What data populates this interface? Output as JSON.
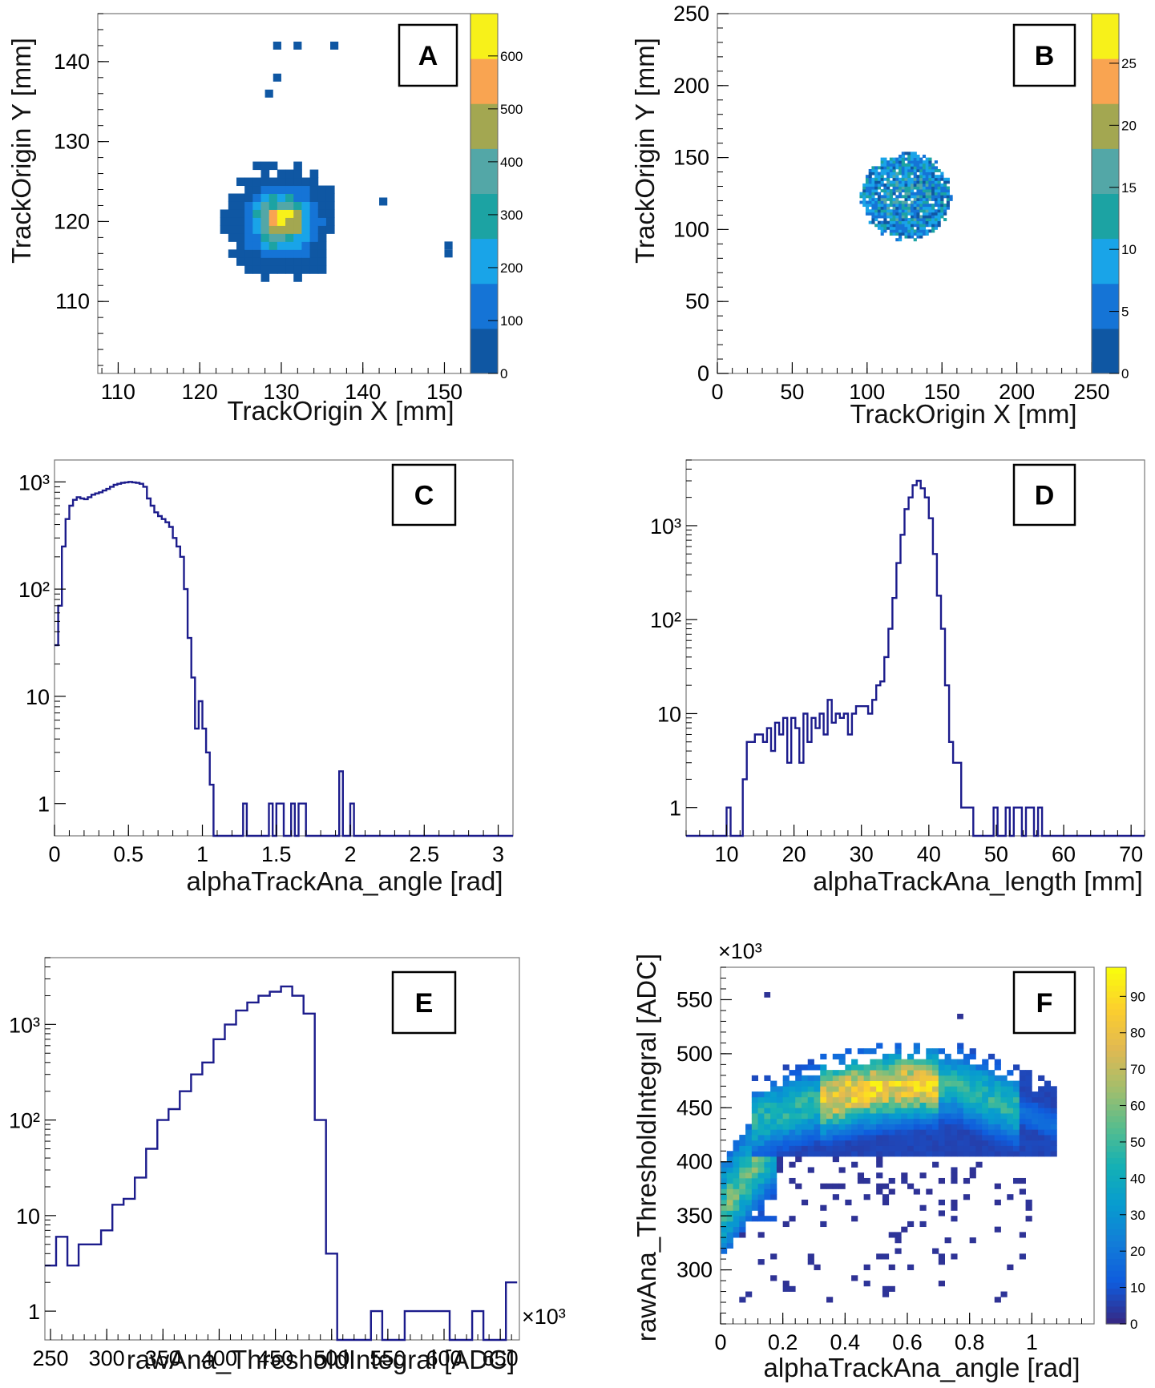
{
  "chart_data": [
    {
      "id": "A",
      "type": "heatmap",
      "panel_label": "A",
      "xlabel": "TrackOrigin  X [mm]",
      "ylabel": "TrackOrigin  Y [mm]",
      "xlim": [
        107.5,
        153
      ],
      "ylim": [
        101,
        146
      ],
      "xticks": [
        "110",
        "120",
        "130",
        "140",
        "150"
      ],
      "yticks": [
        "110",
        "120",
        "130",
        "140"
      ],
      "colorbar": {
        "ticks": [
          "0",
          "100",
          "200",
          "300",
          "400",
          "500",
          "600"
        ],
        "max": 680
      },
      "bin_size": 1,
      "clusters": [
        {
          "cx": 129.5,
          "cy": 119.5,
          "radius": 7,
          "peak": 640
        }
      ],
      "points": [
        {
          "x": 129.5,
          "y": 142,
          "value": 20
        },
        {
          "x": 132,
          "y": 142,
          "value": 20
        },
        {
          "x": 136.5,
          "y": 142,
          "value": 20
        },
        {
          "x": 129.5,
          "y": 138,
          "value": 20
        },
        {
          "x": 128.5,
          "y": 136,
          "value": 20
        },
        {
          "x": 142.5,
          "y": 122.5,
          "value": 20
        },
        {
          "x": 150.5,
          "y": 117,
          "value": 20
        },
        {
          "x": 150.5,
          "y": 116,
          "value": 20
        }
      ]
    },
    {
      "id": "B",
      "type": "heatmap",
      "panel_label": "B",
      "xlabel": "TrackOrigin  X [mm]",
      "ylabel": "TrackOrigin  Y [mm]",
      "xlim": [
        0,
        250
      ],
      "ylim": [
        0,
        250
      ],
      "xticks": [
        "0",
        "50",
        "100",
        "150",
        "200",
        "250"
      ],
      "yticks": [
        "0",
        "50",
        "100",
        "150",
        "200",
        "250"
      ],
      "colorbar": {
        "ticks": [
          "0",
          "5",
          "10",
          "15",
          "20",
          "25"
        ],
        "max": 29
      },
      "bin_size": 2,
      "clusters": [
        {
          "cx": 125,
          "cy": 122,
          "radius": 30,
          "peak": 14
        }
      ],
      "points": []
    },
    {
      "id": "C",
      "type": "histogram",
      "panel_label": "C",
      "yscale": "log",
      "xlabel": "alphaTrackAna_angle [rad]",
      "ylabel": "",
      "xlim": [
        0,
        3.1
      ],
      "ylim": [
        0.5,
        1600
      ],
      "xticks": [
        "0",
        "0.5",
        "1",
        "1.5",
        "2",
        "2.5",
        "3"
      ],
      "ytick_labels": [
        "1",
        "10",
        "10²",
        "10³"
      ],
      "bin_width": 0.025,
      "values": [
        30,
        70,
        250,
        450,
        600,
        680,
        720,
        700,
        690,
        720,
        760,
        780,
        800,
        830,
        860,
        900,
        940,
        960,
        980,
        990,
        1000,
        990,
        980,
        960,
        900,
        700,
        600,
        520,
        480,
        450,
        420,
        380,
        300,
        250,
        200,
        100,
        35,
        15,
        5,
        9,
        5,
        3,
        1.5,
        0.5,
        0.5,
        0.5,
        0.5,
        0.5,
        0.5,
        0.5,
        0.5,
        1,
        0.5,
        0.5,
        0.5,
        0.5,
        0.5,
        0.5,
        1,
        0.5,
        1,
        1,
        0.5,
        0.5,
        1,
        0.5,
        1,
        1,
        0.5,
        0.5,
        0.5,
        0.5,
        0.5,
        0.5,
        0.5,
        0.5,
        0.5,
        2,
        0.5,
        0.5,
        1,
        0.5,
        0.5,
        0.5,
        0.5,
        0.5,
        0.5,
        0.5,
        0.5,
        0.5,
        0.5,
        0.5,
        0.5,
        0.5,
        0.5,
        0.5,
        0.5,
        0.5,
        0.5,
        0.5,
        0.5,
        0.5,
        0.5,
        0.5,
        0.5,
        0.5,
        0.5,
        0.5,
        0.5,
        0.5,
        0.5,
        0.5,
        0.5,
        0.5,
        0.5,
        0.5,
        0.5,
        0.5,
        0.5,
        0.5,
        0.5,
        0.5,
        0.5,
        0.5,
        0.5,
        0.5,
        0.5,
        0.5,
        0.5,
        0.5,
        0.5,
        0.5,
        0.5,
        0.5,
        0.5,
        0.5,
        0.5,
        0.5,
        0.5,
        0.5
      ]
    },
    {
      "id": "D",
      "type": "histogram",
      "panel_label": "D",
      "yscale": "log",
      "xlabel": "alphaTrackAna_length [mm]",
      "ylabel": "",
      "xlim": [
        4,
        72
      ],
      "ylim": [
        0.5,
        5000
      ],
      "xticks": [
        "10",
        "20",
        "30",
        "40",
        "50",
        "60",
        "70"
      ],
      "ytick_labels": [
        "1",
        "10",
        "10²",
        "10³"
      ],
      "bin_width": 0.6,
      "values": [
        0.5,
        0.5,
        0.5,
        0.5,
        0.5,
        0.5,
        0.5,
        0.5,
        0.5,
        0.5,
        1,
        0.5,
        0.5,
        0.5,
        2,
        5,
        5,
        6,
        6,
        5,
        7,
        4,
        8,
        6,
        9,
        3,
        9,
        7,
        3,
        10,
        5,
        9,
        7,
        10,
        6,
        14,
        8,
        10,
        9,
        10,
        6,
        10,
        12,
        12,
        12,
        10,
        14,
        20,
        22,
        40,
        80,
        170,
        400,
        800,
        1500,
        2000,
        2700,
        3000,
        2500,
        2000,
        1200,
        500,
        180,
        80,
        20,
        5,
        3,
        3,
        1,
        1,
        1,
        0.5,
        0.5,
        0.5,
        0.5,
        0.5,
        1,
        0.5,
        0.5,
        1,
        0.5,
        1,
        1,
        0.5,
        1,
        1,
        0.5,
        1,
        0.5,
        0.5,
        0.5,
        0.5,
        0.5,
        0.5,
        0.5,
        0.5,
        0.5,
        0.5,
        0.5,
        0.5,
        0.5,
        0.5,
        0.5,
        0.5,
        0.5,
        0.5,
        0.5,
        0.5,
        0.5,
        0.5,
        0.5,
        0.5,
        0.5,
        0.5,
        0.5,
        0.5,
        0.5,
        0.5,
        0.5,
        0.5,
        0.5,
        0.5,
        0.5,
        0.5,
        0.5,
        0.5,
        0.5,
        0.5,
        1,
        0.5,
        0.5,
        0.5,
        0.5,
        0.5,
        0.5,
        0.5
      ]
    },
    {
      "id": "E",
      "type": "histogram",
      "panel_label": "E",
      "yscale": "log",
      "xlabel": "rawAna_ThresholdIntegral  [ADC]",
      "ylabel": "",
      "xlim": [
        245,
        667
      ],
      "ylim": [
        0.5,
        5000
      ],
      "xticks": [
        "250",
        "300",
        "350",
        "400",
        "450",
        "500",
        "550",
        "600",
        "650"
      ],
      "ytick_labels": [
        "1",
        "10",
        "10²",
        "10³"
      ],
      "x_multiplier": "×10³",
      "bin_width": 10,
      "values": [
        3,
        6,
        3,
        5,
        5,
        7,
        13,
        15,
        25,
        50,
        100,
        130,
        200,
        300,
        400,
        700,
        1000,
        1400,
        1700,
        2000,
        2200,
        2500,
        2000,
        1300,
        100,
        4,
        0.5,
        0.5,
        0.5,
        1,
        0.5,
        0.5,
        1,
        1,
        1,
        1,
        0.5,
        0.5,
        1,
        0.5,
        0.5,
        2
      ]
    },
    {
      "id": "F",
      "type": "heatmap",
      "panel_label": "F",
      "xlabel": "alphaTrackAna_angle [rad]",
      "ylabel": "rawAna_ThresholdIntegral  [ADC]",
      "xlim": [
        0,
        1.2
      ],
      "ylim": [
        250,
        580
      ],
      "xticks": [
        "0",
        "0.2",
        "0.4",
        "0.6",
        "0.8",
        "1"
      ],
      "yticks": [
        "300",
        "350",
        "400",
        "450",
        "500",
        "550"
      ],
      "y_multiplier": "×10³",
      "colorbar": {
        "ticks": [
          "0",
          "10",
          "20",
          "30",
          "40",
          "50",
          "60",
          "70",
          "80",
          "90"
        ],
        "max": 98
      }
    }
  ],
  "labels": {
    "A": "A",
    "B": "B",
    "C": "C",
    "D": "D",
    "E": "E",
    "F": "F"
  }
}
